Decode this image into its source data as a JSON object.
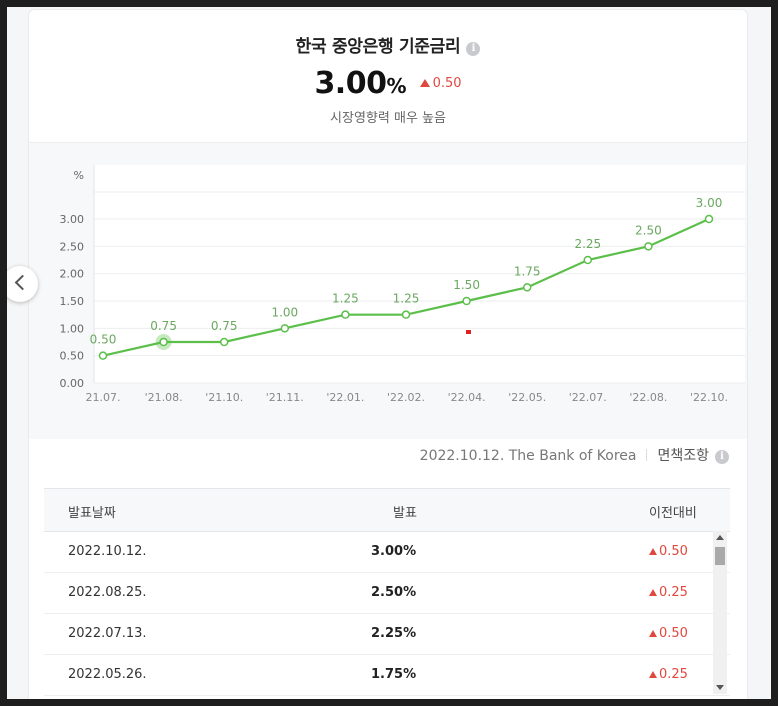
{
  "header": {
    "title": "한국 중앙은행 기준금리",
    "rate_value": "3.00",
    "rate_unit": "%",
    "rate_change": "0.50",
    "influence": "시장영향력 매우 높음"
  },
  "chart_data": {
    "type": "line",
    "ylabel": "%",
    "ylim": [
      0,
      3.0
    ],
    "y_ticks": [
      "0.00",
      "0.50",
      "1.00",
      "1.50",
      "2.00",
      "2.50",
      "3.00"
    ],
    "categories": [
      "'21.07.",
      "'21.08.",
      "'21.10.",
      "'21.11.",
      "'22.01.",
      "'22.02.",
      "'22.04.",
      "'22.05.",
      "'22.07.",
      "'22.08.",
      "'22.10."
    ],
    "x_tick_labels": [
      "21.07.",
      "'21.08.",
      "'21.10.",
      "'21.11.",
      "'22.01.",
      "'22.02.",
      "'22.04.",
      "'22.05.",
      "'22.07.",
      "'22.08.",
      "'22.10."
    ],
    "values": [
      0.5,
      0.75,
      0.75,
      1.0,
      1.25,
      1.25,
      1.5,
      1.75,
      2.25,
      2.5,
      3.0
    ],
    "data_labels": [
      "0.50",
      "0.75",
      "0.75",
      "1.00",
      "1.25",
      "1.25",
      "1.50",
      "1.75",
      "2.25",
      "2.50",
      "3.00"
    ],
    "highlight_index": 1,
    "line_color": "#5bbf4a",
    "grid": true
  },
  "source": {
    "text": "2022.10.12. The Bank of Korea",
    "policy_link": "면책조항"
  },
  "table": {
    "headers": [
      "발표날짜",
      "발표",
      "이전대비"
    ],
    "rows": [
      {
        "date": "2022.10.12.",
        "value": "3.00%",
        "change": "0.50"
      },
      {
        "date": "2022.08.25.",
        "value": "2.50%",
        "change": "0.25"
      },
      {
        "date": "2022.07.13.",
        "value": "2.25%",
        "change": "0.50"
      },
      {
        "date": "2022.05.26.",
        "value": "1.75%",
        "change": "0.25"
      }
    ]
  },
  "colors": {
    "accent_green": "#5bbf4a",
    "up_red": "#e0483e"
  },
  "icons": {
    "info": "info-icon",
    "prev": "chevron-left-icon",
    "up": "triangle-up-icon"
  }
}
